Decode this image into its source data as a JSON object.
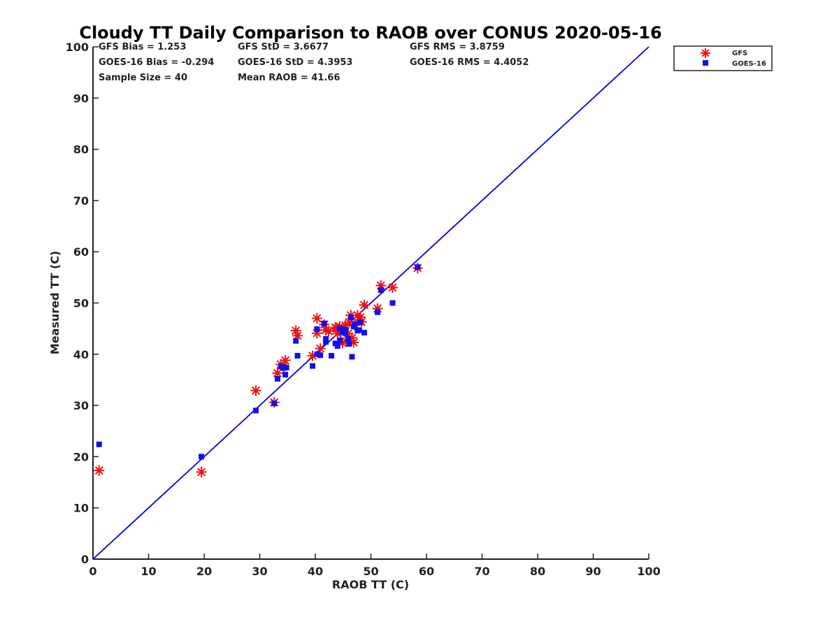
{
  "chart_data": {
    "type": "scatter",
    "title": "Cloudy TT Daily Comparison to RAOB over CONUS 2020-05-16",
    "xlabel": "RAOB TT (C)",
    "ylabel": "Measured TT (C)",
    "xlim": [
      0,
      100
    ],
    "ylim": [
      0,
      100
    ],
    "xticks": [
      "0",
      "10",
      "20",
      "30",
      "40",
      "50",
      "60",
      "70",
      "80",
      "90",
      "100"
    ],
    "yticks": [
      "0",
      "10",
      "20",
      "30",
      "40",
      "50",
      "60",
      "70",
      "80",
      "90",
      "100"
    ],
    "grid": false,
    "legend_position": "top-right outside",
    "stats": [
      "GFS Bias = 1.253",
      "GFS StD = 3.6677",
      "GFS RMS = 3.8759",
      "GOES-16 Bias = -0.294",
      "GOES-16 StD = 4.3953",
      "GOES-16 RMS = 4.4052",
      "Sample Size = 40",
      "Mean RAOB = 41.66"
    ],
    "reference_line": {
      "from": [
        0,
        0
      ],
      "to": [
        100,
        100
      ],
      "color": "#0000dd"
    },
    "series": [
      {
        "name": "GFS",
        "marker": "asterisk",
        "color": "#ee1111",
        "points": [
          [
            1.1,
            17.3
          ],
          [
            19.5,
            17.0
          ],
          [
            29.3,
            32.9
          ],
          [
            32.6,
            30.6
          ],
          [
            33.2,
            36.3
          ],
          [
            33.8,
            38.0
          ],
          [
            34.3,
            37.6
          ],
          [
            34.6,
            38.8
          ],
          [
            36.5,
            44.6
          ],
          [
            36.8,
            43.6
          ],
          [
            39.5,
            39.7
          ],
          [
            40.3,
            44.1
          ],
          [
            40.3,
            47.0
          ],
          [
            40.9,
            41.1
          ],
          [
            41.6,
            45.8
          ],
          [
            41.9,
            44.7
          ],
          [
            42.4,
            44.5
          ],
          [
            43.6,
            45.2
          ],
          [
            44.0,
            44.0
          ],
          [
            44.4,
            45.4
          ],
          [
            44.9,
            42.2
          ],
          [
            45.4,
            45.6
          ],
          [
            45.9,
            44.0
          ],
          [
            46.1,
            46.2
          ],
          [
            46.4,
            47.6
          ],
          [
            46.9,
            42.3
          ],
          [
            47.1,
            45.7
          ],
          [
            47.9,
            46.7
          ],
          [
            48.1,
            47.2
          ],
          [
            48.3,
            46.3
          ],
          [
            48.8,
            49.6
          ],
          [
            51.2,
            48.9
          ],
          [
            51.8,
            53.4
          ],
          [
            53.9,
            53.0
          ],
          [
            58.4,
            56.8
          ],
          [
            44.6,
            44.3
          ],
          [
            43.9,
            45.0
          ],
          [
            46.6,
            43.2
          ],
          [
            47.6,
            47.6
          ],
          [
            45.6,
            42.5
          ]
        ]
      },
      {
        "name": "GOES-16",
        "marker": "square",
        "color": "#1111ee",
        "points": [
          [
            1.1,
            22.4
          ],
          [
            19.5,
            20.0
          ],
          [
            29.3,
            29.0
          ],
          [
            32.6,
            30.4
          ],
          [
            33.2,
            35.2
          ],
          [
            33.8,
            37.6
          ],
          [
            34.3,
            37.3
          ],
          [
            34.6,
            36.0
          ],
          [
            34.8,
            37.4
          ],
          [
            36.5,
            42.6
          ],
          [
            36.8,
            39.7
          ],
          [
            39.5,
            37.7
          ],
          [
            40.3,
            40.0
          ],
          [
            40.3,
            44.9
          ],
          [
            40.9,
            39.8
          ],
          [
            41.6,
            46.0
          ],
          [
            41.9,
            43.0
          ],
          [
            41.9,
            42.4
          ],
          [
            42.9,
            39.7
          ],
          [
            43.6,
            42.1
          ],
          [
            44.0,
            41.6
          ],
          [
            44.4,
            42.7
          ],
          [
            44.9,
            44.3
          ],
          [
            45.4,
            44.1
          ],
          [
            45.9,
            43.0
          ],
          [
            46.1,
            42.0
          ],
          [
            46.4,
            47.2
          ],
          [
            46.6,
            39.5
          ],
          [
            46.9,
            45.4
          ],
          [
            47.1,
            45.9
          ],
          [
            47.6,
            44.6
          ],
          [
            47.9,
            44.7
          ],
          [
            48.1,
            46.2
          ],
          [
            48.8,
            44.2
          ],
          [
            51.2,
            48.2
          ],
          [
            51.8,
            52.5
          ],
          [
            53.9,
            50.0
          ],
          [
            58.4,
            57.0
          ],
          [
            44.4,
            45.0
          ],
          [
            45.4,
            44.8
          ]
        ]
      }
    ]
  }
}
